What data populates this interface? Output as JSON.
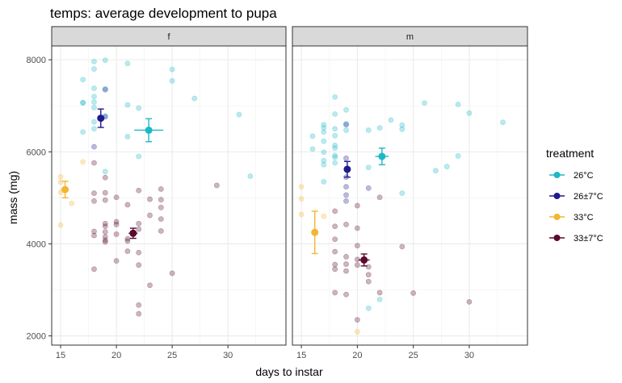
{
  "chart_data": {
    "type": "scatter",
    "title": "temps: average development to pupa",
    "xlabel": "days to instar",
    "ylabel": "mass (mg)",
    "xlim": [
      14.2,
      35.2
    ],
    "ylim": [
      1800,
      8300
    ],
    "xticks": [
      15,
      20,
      25,
      30
    ],
    "yticks": [
      2000,
      4000,
      6000,
      8000
    ],
    "grid": true,
    "legend": {
      "title": "treatment",
      "placement": "right",
      "entries": [
        {
          "label": "26°C",
          "color": "#1bb8c8"
        },
        {
          "label": "26±7°C",
          "color": "#1f1a8f"
        },
        {
          "label": "33°C",
          "color": "#f2b632"
        },
        {
          "label": "33±7°C",
          "color": "#5a0a2e"
        }
      ]
    },
    "panels": [
      {
        "label": "f",
        "points": [
          {
            "treatment": "26°C",
            "x": 17,
            "y": 7070
          },
          {
            "treatment": "26°C",
            "x": 17,
            "y": 7060
          },
          {
            "treatment": "26°C",
            "x": 17,
            "y": 6430
          },
          {
            "treatment": "26°C",
            "x": 17,
            "y": 7570
          },
          {
            "treatment": "26°C",
            "x": 18,
            "y": 7960
          },
          {
            "treatment": "26°C",
            "x": 18,
            "y": 7800
          },
          {
            "treatment": "26°C",
            "x": 18,
            "y": 7380
          },
          {
            "treatment": "26°C",
            "x": 18,
            "y": 7200
          },
          {
            "treatment": "26°C",
            "x": 18,
            "y": 7080
          },
          {
            "treatment": "26°C",
            "x": 18,
            "y": 6960
          },
          {
            "treatment": "26°C",
            "x": 18,
            "y": 6650
          },
          {
            "treatment": "26°C",
            "x": 18,
            "y": 6500
          },
          {
            "treatment": "26°C",
            "x": 19,
            "y": 7990
          },
          {
            "treatment": "26°C",
            "x": 19,
            "y": 7370
          },
          {
            "treatment": "26°C",
            "x": 19,
            "y": 6780
          },
          {
            "treatment": "26°C",
            "x": 19,
            "y": 5570
          },
          {
            "treatment": "26°C",
            "x": 21,
            "y": 7920
          },
          {
            "treatment": "26°C",
            "x": 21,
            "y": 7020
          },
          {
            "treatment": "26°C",
            "x": 21,
            "y": 6330
          },
          {
            "treatment": "26°C",
            "x": 22,
            "y": 6950
          },
          {
            "treatment": "26°C",
            "x": 22,
            "y": 5900
          },
          {
            "treatment": "26°C",
            "x": 25,
            "y": 7790
          },
          {
            "treatment": "26°C",
            "x": 25,
            "y": 7540
          },
          {
            "treatment": "26°C",
            "x": 27,
            "y": 7160
          },
          {
            "treatment": "26°C",
            "x": 31,
            "y": 6810
          },
          {
            "treatment": "26°C",
            "x": 32,
            "y": 5470
          },
          {
            "treatment": "26±7°C",
            "x": 18,
            "y": 6110
          },
          {
            "treatment": "26±7°C",
            "x": 19,
            "y": 7350
          },
          {
            "treatment": "26±7°C",
            "x": 19,
            "y": 6760
          },
          {
            "treatment": "33°C",
            "x": 15,
            "y": 5460
          },
          {
            "treatment": "33°C",
            "x": 15,
            "y": 5340
          },
          {
            "treatment": "33°C",
            "x": 15,
            "y": 5120
          },
          {
            "treatment": "33°C",
            "x": 15,
            "y": 4410
          },
          {
            "treatment": "33°C",
            "x": 16,
            "y": 4880
          },
          {
            "treatment": "33°C",
            "x": 17,
            "y": 5780
          },
          {
            "treatment": "33±7°C",
            "x": 18,
            "y": 5760
          },
          {
            "treatment": "33±7°C",
            "x": 18,
            "y": 5100
          },
          {
            "treatment": "33±7°C",
            "x": 18,
            "y": 4930
          },
          {
            "treatment": "33±7°C",
            "x": 18,
            "y": 4270
          },
          {
            "treatment": "33±7°C",
            "x": 18,
            "y": 4180
          },
          {
            "treatment": "33±7°C",
            "x": 18,
            "y": 3450
          },
          {
            "treatment": "33±7°C",
            "x": 19,
            "y": 5440
          },
          {
            "treatment": "33±7°C",
            "x": 19,
            "y": 5110
          },
          {
            "treatment": "33±7°C",
            "x": 19,
            "y": 4950
          },
          {
            "treatment": "33±7°C",
            "x": 19,
            "y": 4440
          },
          {
            "treatment": "33±7°C",
            "x": 19,
            "y": 4380
          },
          {
            "treatment": "33±7°C",
            "x": 19,
            "y": 4260
          },
          {
            "treatment": "33±7°C",
            "x": 19,
            "y": 4150
          },
          {
            "treatment": "33±7°C",
            "x": 19,
            "y": 4080
          },
          {
            "treatment": "33±7°C",
            "x": 19,
            "y": 4040
          },
          {
            "treatment": "33±7°C",
            "x": 20,
            "y": 5010
          },
          {
            "treatment": "33±7°C",
            "x": 20,
            "y": 4480
          },
          {
            "treatment": "33±7°C",
            "x": 20,
            "y": 4420
          },
          {
            "treatment": "33±7°C",
            "x": 20,
            "y": 4210
          },
          {
            "treatment": "33±7°C",
            "x": 20,
            "y": 3630
          },
          {
            "treatment": "33±7°C",
            "x": 21,
            "y": 4850
          },
          {
            "treatment": "33±7°C",
            "x": 21,
            "y": 4110
          },
          {
            "treatment": "33±7°C",
            "x": 21,
            "y": 4060
          },
          {
            "treatment": "33±7°C",
            "x": 21,
            "y": 3840
          },
          {
            "treatment": "33±7°C",
            "x": 22,
            "y": 5160
          },
          {
            "treatment": "33±7°C",
            "x": 22,
            "y": 4440
          },
          {
            "treatment": "33±7°C",
            "x": 22,
            "y": 4320
          },
          {
            "treatment": "33±7°C",
            "x": 22,
            "y": 3810
          },
          {
            "treatment": "33±7°C",
            "x": 22,
            "y": 3540
          },
          {
            "treatment": "33±7°C",
            "x": 22,
            "y": 2670
          },
          {
            "treatment": "33±7°C",
            "x": 22,
            "y": 2480
          },
          {
            "treatment": "33±7°C",
            "x": 23,
            "y": 4970
          },
          {
            "treatment": "33±7°C",
            "x": 23,
            "y": 4620
          },
          {
            "treatment": "33±7°C",
            "x": 23,
            "y": 3100
          },
          {
            "treatment": "33±7°C",
            "x": 24,
            "y": 5190
          },
          {
            "treatment": "33±7°C",
            "x": 24,
            "y": 4960
          },
          {
            "treatment": "33±7°C",
            "x": 24,
            "y": 4790
          },
          {
            "treatment": "33±7°C",
            "x": 24,
            "y": 4540
          },
          {
            "treatment": "33±7°C",
            "x": 24,
            "y": 4280
          },
          {
            "treatment": "33±7°C",
            "x": 25,
            "y": 3360
          },
          {
            "treatment": "33±7°C",
            "x": 29,
            "y": 5270
          }
        ],
        "means": [
          {
            "treatment": "26°C",
            "x": 22.9,
            "y": 6470,
            "xerr": 1.3,
            "yerr": 250
          },
          {
            "treatment": "26±7°C",
            "x": 18.6,
            "y": 6730,
            "xerr": 0.3,
            "yerr": 200
          },
          {
            "treatment": "33°C",
            "x": 15.4,
            "y": 5180,
            "xerr": 0.35,
            "yerr": 180
          },
          {
            "treatment": "33±7°C",
            "x": 21.5,
            "y": 4230,
            "xerr": 0.4,
            "yerr": 110
          }
        ]
      },
      {
        "label": "m",
        "points": [
          {
            "treatment": "26°C",
            "x": 16,
            "y": 6340
          },
          {
            "treatment": "26°C",
            "x": 16,
            "y": 6060
          },
          {
            "treatment": "26°C",
            "x": 17,
            "y": 6590
          },
          {
            "treatment": "26°C",
            "x": 17,
            "y": 6520
          },
          {
            "treatment": "26°C",
            "x": 17,
            "y": 6430
          },
          {
            "treatment": "26°C",
            "x": 17,
            "y": 6230
          },
          {
            "treatment": "26°C",
            "x": 17,
            "y": 5990
          },
          {
            "treatment": "26°C",
            "x": 17,
            "y": 5810
          },
          {
            "treatment": "26°C",
            "x": 17,
            "y": 5720
          },
          {
            "treatment": "26°C",
            "x": 17,
            "y": 5350
          },
          {
            "treatment": "26°C",
            "x": 18,
            "y": 7190
          },
          {
            "treatment": "26°C",
            "x": 18,
            "y": 6820
          },
          {
            "treatment": "26°C",
            "x": 18,
            "y": 6500
          },
          {
            "treatment": "26°C",
            "x": 18,
            "y": 6350
          },
          {
            "treatment": "26°C",
            "x": 18,
            "y": 6140
          },
          {
            "treatment": "26°C",
            "x": 18,
            "y": 6080
          },
          {
            "treatment": "26°C",
            "x": 18,
            "y": 5920
          },
          {
            "treatment": "26°C",
            "x": 18,
            "y": 5880
          },
          {
            "treatment": "26°C",
            "x": 18,
            "y": 5760
          },
          {
            "treatment": "26°C",
            "x": 19,
            "y": 6910
          },
          {
            "treatment": "26°C",
            "x": 19,
            "y": 6610
          },
          {
            "treatment": "26°C",
            "x": 19,
            "y": 6470
          },
          {
            "treatment": "26°C",
            "x": 21,
            "y": 6470
          },
          {
            "treatment": "26°C",
            "x": 21,
            "y": 5660
          },
          {
            "treatment": "26°C",
            "x": 21,
            "y": 2600
          },
          {
            "treatment": "26°C",
            "x": 22,
            "y": 6520
          },
          {
            "treatment": "26°C",
            "x": 22,
            "y": 2790
          },
          {
            "treatment": "26°C",
            "x": 23,
            "y": 6690
          },
          {
            "treatment": "26°C",
            "x": 24,
            "y": 6580
          },
          {
            "treatment": "26°C",
            "x": 24,
            "y": 6490
          },
          {
            "treatment": "26°C",
            "x": 24,
            "y": 5100
          },
          {
            "treatment": "26°C",
            "x": 26,
            "y": 7060
          },
          {
            "treatment": "26°C",
            "x": 27,
            "y": 5590
          },
          {
            "treatment": "26°C",
            "x": 28,
            "y": 5680
          },
          {
            "treatment": "26°C",
            "x": 29,
            "y": 7030
          },
          {
            "treatment": "26°C",
            "x": 29,
            "y": 5910
          },
          {
            "treatment": "26°C",
            "x": 30,
            "y": 6840
          },
          {
            "treatment": "26°C",
            "x": 33,
            "y": 6640
          },
          {
            "treatment": "26±7°C",
            "x": 19,
            "y": 6590
          },
          {
            "treatment": "26±7°C",
            "x": 19,
            "y": 5860
          },
          {
            "treatment": "26±7°C",
            "x": 19,
            "y": 5450
          },
          {
            "treatment": "26±7°C",
            "x": 19,
            "y": 5240
          },
          {
            "treatment": "26±7°C",
            "x": 19,
            "y": 5060
          },
          {
            "treatment": "26±7°C",
            "x": 19,
            "y": 4930
          },
          {
            "treatment": "26±7°C",
            "x": 21,
            "y": 5210
          },
          {
            "treatment": "33°C",
            "x": 15,
            "y": 5240
          },
          {
            "treatment": "33°C",
            "x": 15,
            "y": 4980
          },
          {
            "treatment": "33°C",
            "x": 15,
            "y": 4640
          },
          {
            "treatment": "33°C",
            "x": 17,
            "y": 4600
          },
          {
            "treatment": "33°C",
            "x": 20,
            "y": 2090
          },
          {
            "treatment": "33±7°C",
            "x": 18,
            "y": 4710
          },
          {
            "treatment": "33±7°C",
            "x": 18,
            "y": 4380
          },
          {
            "treatment": "33±7°C",
            "x": 18,
            "y": 4100
          },
          {
            "treatment": "33±7°C",
            "x": 18,
            "y": 3830
          },
          {
            "treatment": "33±7°C",
            "x": 18,
            "y": 3550
          },
          {
            "treatment": "33±7°C",
            "x": 18,
            "y": 3450
          },
          {
            "treatment": "33±7°C",
            "x": 18,
            "y": 2940
          },
          {
            "treatment": "33±7°C",
            "x": 19,
            "y": 4420
          },
          {
            "treatment": "33±7°C",
            "x": 19,
            "y": 3720
          },
          {
            "treatment": "33±7°C",
            "x": 19,
            "y": 3560
          },
          {
            "treatment": "33±7°C",
            "x": 19,
            "y": 3410
          },
          {
            "treatment": "33±7°C",
            "x": 19,
            "y": 2900
          },
          {
            "treatment": "33±7°C",
            "x": 20,
            "y": 4830
          },
          {
            "treatment": "33±7°C",
            "x": 20,
            "y": 4340
          },
          {
            "treatment": "33±7°C",
            "x": 20,
            "y": 3960
          },
          {
            "treatment": "33±7°C",
            "x": 20,
            "y": 3660
          },
          {
            "treatment": "33±7°C",
            "x": 20,
            "y": 3540
          },
          {
            "treatment": "33±7°C",
            "x": 20,
            "y": 2350
          },
          {
            "treatment": "33±7°C",
            "x": 21,
            "y": 3500
          },
          {
            "treatment": "33±7°C",
            "x": 21,
            "y": 3330
          },
          {
            "treatment": "33±7°C",
            "x": 21,
            "y": 3180
          },
          {
            "treatment": "33±7°C",
            "x": 22,
            "y": 5010
          },
          {
            "treatment": "33±7°C",
            "x": 22,
            "y": 2940
          },
          {
            "treatment": "33±7°C",
            "x": 24,
            "y": 3940
          },
          {
            "treatment": "33±7°C",
            "x": 25,
            "y": 2930
          },
          {
            "treatment": "33±7°C",
            "x": 30,
            "y": 2740
          }
        ],
        "means": [
          {
            "treatment": "26°C",
            "x": 22.2,
            "y": 5900,
            "xerr": 0.6,
            "yerr": 180
          },
          {
            "treatment": "26±7°C",
            "x": 19.1,
            "y": 5620,
            "xerr": 0.15,
            "yerr": 170
          },
          {
            "treatment": "33°C",
            "x": 16.2,
            "y": 4250,
            "xerr": 0.3,
            "yerr": 460
          },
          {
            "treatment": "33±7°C",
            "x": 20.6,
            "y": 3650,
            "xerr": 0.5,
            "yerr": 130
          }
        ]
      }
    ]
  }
}
